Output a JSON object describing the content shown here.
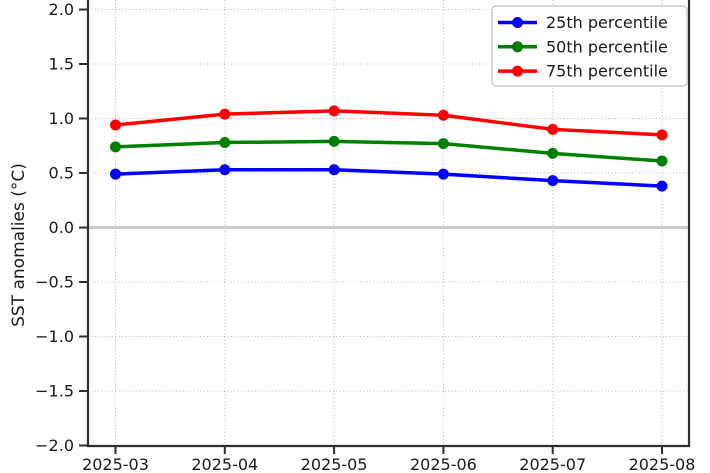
{
  "chart_data": {
    "type": "line",
    "title": "",
    "xlabel": "",
    "ylabel": "SST anomalies (°C)",
    "categories": [
      "2025-03",
      "2025-04",
      "2025-05",
      "2025-06",
      "2025-07",
      "2025-08"
    ],
    "series": [
      {
        "name": "25th percentile",
        "color": "#0000ff",
        "values": [
          0.49,
          0.53,
          0.53,
          0.49,
          0.43,
          0.38
        ]
      },
      {
        "name": "50th percentile",
        "color": "#008000",
        "values": [
          0.74,
          0.78,
          0.79,
          0.77,
          0.68,
          0.61
        ]
      },
      {
        "name": "75th percentile",
        "color": "#ff0000",
        "values": [
          0.94,
          1.04,
          1.07,
          1.03,
          0.9,
          0.85
        ]
      }
    ],
    "ylim": [
      -2.0,
      2.1
    ],
    "yticks": [
      2.0,
      1.5,
      1.0,
      0.5,
      0.0,
      -0.5,
      -1.0,
      -1.5,
      -2.0
    ],
    "ytick_labels": [
      "2.0",
      "1.5",
      "1.0",
      "0.5",
      "0.0",
      "−0.5",
      "−1.0",
      "−1.5",
      "−2.0"
    ],
    "grid": "dotted",
    "grid_color": "#b3b3b3",
    "zero_line_color": "#cccccc",
    "spine_color": "#2e2e2e",
    "legend_position": "upper right",
    "legend_labels": [
      "25th percentile",
      "50th percentile",
      "75th percentile"
    ]
  }
}
